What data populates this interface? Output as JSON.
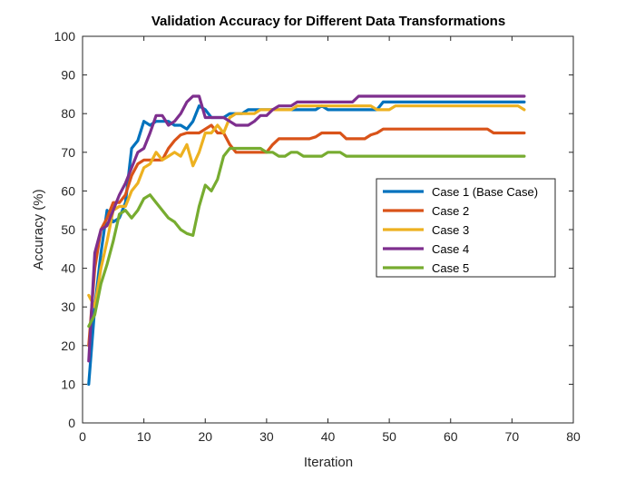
{
  "chart_data": {
    "type": "line",
    "title": "Validation Accuracy for Different Data Transformations",
    "xlabel": "Iteration",
    "ylabel": "Accuracy (%)",
    "xlim": [
      0,
      80
    ],
    "ylim": [
      0,
      100
    ],
    "xticks": [
      0,
      10,
      20,
      30,
      40,
      50,
      60,
      70,
      80
    ],
    "yticks": [
      0,
      10,
      20,
      30,
      40,
      50,
      60,
      70,
      80,
      90,
      100
    ],
    "grid": false,
    "legend_position": "right-center",
    "series": [
      {
        "name": "Case 1 (Base Case)",
        "color": "#0072BD",
        "x": [
          1,
          2,
          3,
          4,
          5,
          6,
          7,
          8,
          9,
          10,
          11,
          12,
          13,
          14,
          15,
          16,
          17,
          18,
          19,
          20,
          21,
          22,
          23,
          24,
          25,
          26,
          27,
          28,
          29,
          30,
          31,
          32,
          33,
          34,
          35,
          36,
          37,
          38,
          39,
          40,
          41,
          42,
          43,
          44,
          45,
          46,
          47,
          48,
          49,
          50,
          51,
          52,
          53,
          54,
          55,
          56,
          57,
          58,
          59,
          60,
          61,
          62,
          63,
          64,
          65,
          66,
          67,
          68,
          69,
          70,
          71,
          72
        ],
        "y": [
          10,
          30,
          44,
          55,
          52,
          53,
          57,
          71,
          73,
          78,
          77,
          78,
          78,
          78,
          77,
          77,
          76,
          78,
          82,
          81,
          79,
          79,
          79,
          80,
          80,
          80,
          81,
          81,
          81,
          81,
          81,
          81,
          81,
          81,
          81,
          81,
          81,
          81,
          82,
          81,
          81,
          81,
          81,
          81,
          81,
          81,
          81,
          81,
          83,
          83,
          83,
          83,
          83,
          83,
          83,
          83,
          83,
          83,
          83,
          83,
          83,
          83,
          83,
          83,
          83,
          83,
          83,
          83,
          83,
          83,
          83,
          83
        ]
      },
      {
        "name": "Case 2",
        "color": "#D95319",
        "x": [
          1,
          2,
          3,
          4,
          5,
          6,
          7,
          8,
          9,
          10,
          11,
          12,
          13,
          14,
          15,
          16,
          17,
          18,
          19,
          20,
          21,
          22,
          23,
          24,
          25,
          26,
          27,
          28,
          29,
          30,
          31,
          32,
          33,
          34,
          35,
          36,
          37,
          38,
          39,
          40,
          41,
          42,
          43,
          44,
          45,
          46,
          47,
          48,
          49,
          50,
          51,
          52,
          53,
          54,
          55,
          56,
          57,
          58,
          59,
          60,
          61,
          62,
          63,
          64,
          65,
          66,
          67,
          68,
          69,
          70,
          71,
          72
        ],
        "y": [
          20,
          40,
          50,
          53,
          57,
          57,
          59,
          64,
          67,
          68,
          68,
          68,
          68,
          71,
          73,
          74.5,
          75,
          75,
          75,
          76,
          77,
          75,
          75,
          72,
          70,
          70,
          70,
          70,
          70,
          70,
          72,
          73.5,
          73.5,
          73.5,
          73.5,
          73.5,
          73.5,
          74,
          75,
          75,
          75,
          75,
          73.5,
          73.5,
          73.5,
          73.5,
          74.5,
          75,
          76,
          76,
          76,
          76,
          76,
          76,
          76,
          76,
          76,
          76,
          76,
          76,
          76,
          76,
          76,
          76,
          76,
          76,
          75,
          75,
          75,
          75,
          75,
          75
        ]
      },
      {
        "name": "Case 3",
        "color": "#EDB120",
        "x": [
          1,
          2,
          3,
          4,
          5,
          6,
          7,
          8,
          9,
          10,
          11,
          12,
          13,
          14,
          15,
          16,
          17,
          18,
          19,
          20,
          21,
          22,
          23,
          24,
          25,
          26,
          27,
          28,
          29,
          30,
          31,
          32,
          33,
          34,
          35,
          36,
          37,
          38,
          39,
          40,
          41,
          42,
          43,
          44,
          45,
          46,
          47,
          48,
          49,
          50,
          51,
          52,
          53,
          54,
          55,
          56,
          57,
          58,
          59,
          60,
          61,
          62,
          63,
          64,
          65,
          66,
          67,
          68,
          69,
          70,
          71,
          72
        ],
        "y": [
          33,
          30,
          40,
          47,
          55,
          56,
          56,
          60,
          62,
          66,
          67,
          70,
          68,
          69,
          70,
          69,
          72,
          66.5,
          70,
          75,
          75,
          77,
          75,
          79,
          80,
          80,
          80,
          80,
          81,
          81,
          81,
          81,
          81,
          81,
          82,
          82,
          82,
          82,
          82,
          82,
          82,
          82,
          82,
          82,
          82,
          82,
          82,
          81,
          81,
          81,
          82,
          82,
          82,
          82,
          82,
          82,
          82,
          82,
          82,
          82,
          82,
          82,
          82,
          82,
          82,
          82,
          82,
          82,
          82,
          82,
          82,
          81
        ]
      },
      {
        "name": "Case 4",
        "color": "#7E2F8E",
        "x": [
          1,
          2,
          3,
          4,
          5,
          6,
          7,
          8,
          9,
          10,
          11,
          12,
          13,
          14,
          15,
          16,
          17,
          18,
          19,
          20,
          21,
          22,
          23,
          24,
          25,
          26,
          27,
          28,
          29,
          30,
          31,
          32,
          33,
          34,
          35,
          36,
          37,
          38,
          39,
          40,
          41,
          42,
          43,
          44,
          45,
          46,
          47,
          48,
          49,
          50,
          51,
          52,
          53,
          54,
          55,
          56,
          57,
          58,
          59,
          60,
          61,
          62,
          63,
          64,
          65,
          66,
          67,
          68,
          69,
          70,
          71,
          72
        ],
        "y": [
          16,
          44,
          50,
          51,
          55,
          59,
          62,
          66,
          70,
          71,
          75,
          79.5,
          79.5,
          77,
          78,
          80,
          83,
          84.5,
          84.5,
          79,
          79,
          79,
          79,
          78,
          77,
          77,
          77,
          78,
          79.5,
          79.5,
          81,
          82,
          82,
          82,
          83,
          83,
          83,
          83,
          83,
          83,
          83,
          83,
          83,
          83,
          84.5,
          84.5,
          84.5,
          84.5,
          84.5,
          84.5,
          84.5,
          84.5,
          84.5,
          84.5,
          84.5,
          84.5,
          84.5,
          84.5,
          84.5,
          84.5,
          84.5,
          84.5,
          84.5,
          84.5,
          84.5,
          84.5,
          84.5,
          84.5,
          84.5,
          84.5,
          84.5,
          84.5
        ]
      },
      {
        "name": "Case 5",
        "color": "#77AC30",
        "x": [
          1,
          2,
          3,
          4,
          5,
          6,
          7,
          8,
          9,
          10,
          11,
          12,
          13,
          14,
          15,
          16,
          17,
          18,
          19,
          20,
          21,
          22,
          23,
          24,
          25,
          26,
          27,
          28,
          29,
          30,
          31,
          32,
          33,
          34,
          35,
          36,
          37,
          38,
          39,
          40,
          41,
          42,
          43,
          44,
          45,
          46,
          47,
          48,
          49,
          50,
          51,
          52,
          53,
          54,
          55,
          56,
          57,
          58,
          59,
          60,
          61,
          62,
          63,
          64,
          65,
          66,
          67,
          68,
          69,
          70,
          71,
          72
        ],
        "y": [
          25,
          28,
          36,
          41,
          47,
          54,
          55,
          53,
          55,
          58,
          59,
          57,
          55,
          53,
          52,
          50,
          49,
          48.5,
          56,
          61.5,
          60,
          63,
          69,
          71,
          71,
          71,
          71,
          71,
          71,
          70,
          70,
          69,
          69,
          70,
          70,
          69,
          69,
          69,
          69,
          70,
          70,
          70,
          69,
          69,
          69,
          69,
          69,
          69,
          69,
          69,
          69,
          69,
          69,
          69,
          69,
          69,
          69,
          69,
          69,
          69,
          69,
          69,
          69,
          69,
          69,
          69,
          69,
          69,
          69,
          69,
          69,
          69
        ]
      }
    ]
  }
}
